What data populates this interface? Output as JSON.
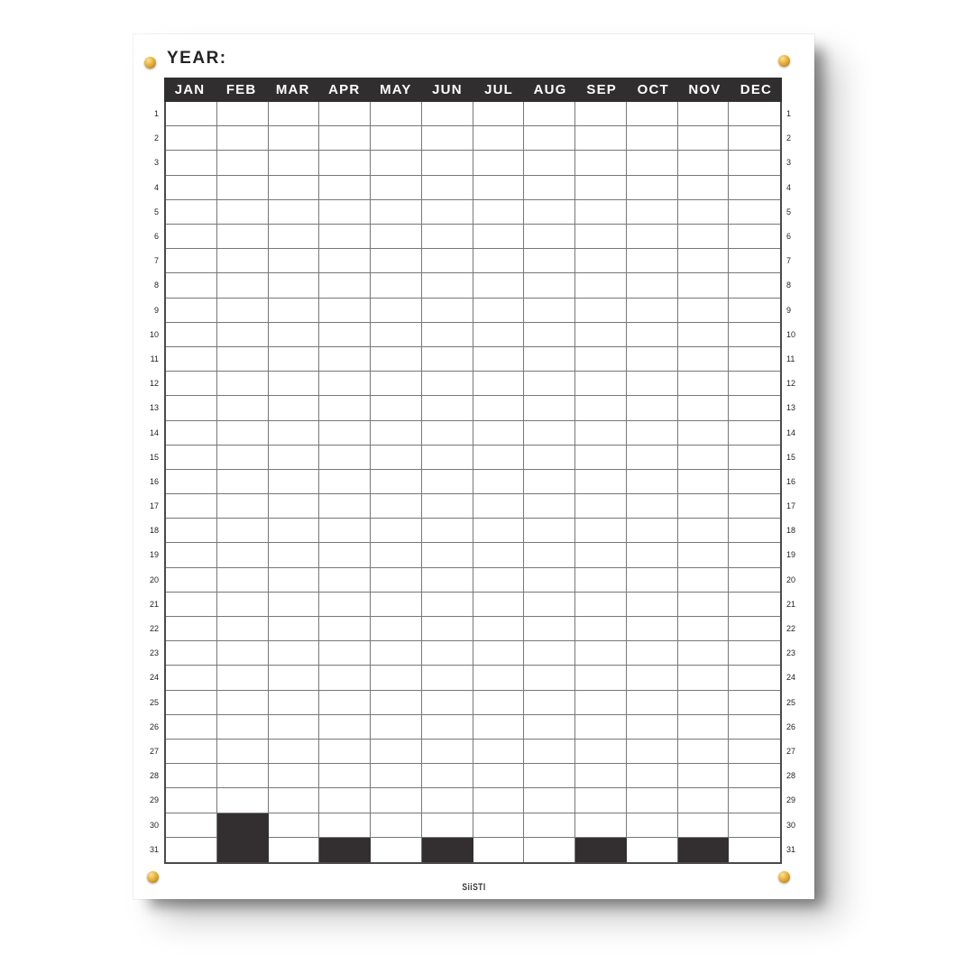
{
  "poster": {
    "year_label": "YEAR:",
    "brand": "SiiSTI"
  },
  "calendar": {
    "months": [
      "JAN",
      "FEB",
      "MAR",
      "APR",
      "MAY",
      "JUN",
      "JUL",
      "AUG",
      "SEP",
      "OCT",
      "NOV",
      "DEC"
    ],
    "day_numbers": [
      1,
      2,
      3,
      4,
      5,
      6,
      7,
      8,
      9,
      10,
      11,
      12,
      13,
      14,
      15,
      16,
      17,
      18,
      19,
      20,
      21,
      22,
      23,
      24,
      25,
      26,
      27,
      28,
      29,
      30,
      31
    ],
    "blocked_cells": [
      {
        "month": "FEB",
        "days": [
          30,
          31
        ]
      },
      {
        "month": "APR",
        "days": [
          31
        ]
      },
      {
        "month": "JUN",
        "days": [
          31
        ]
      },
      {
        "month": "SEP",
        "days": [
          31
        ]
      },
      {
        "month": "NOV",
        "days": [
          31
        ]
      }
    ]
  },
  "colors": {
    "header_bg": "#312e2f",
    "blocked_cell": "#332f30",
    "grid_line": "#777777",
    "grid_border": "#4a4a4a",
    "pin_gold": "#dfa52c"
  }
}
